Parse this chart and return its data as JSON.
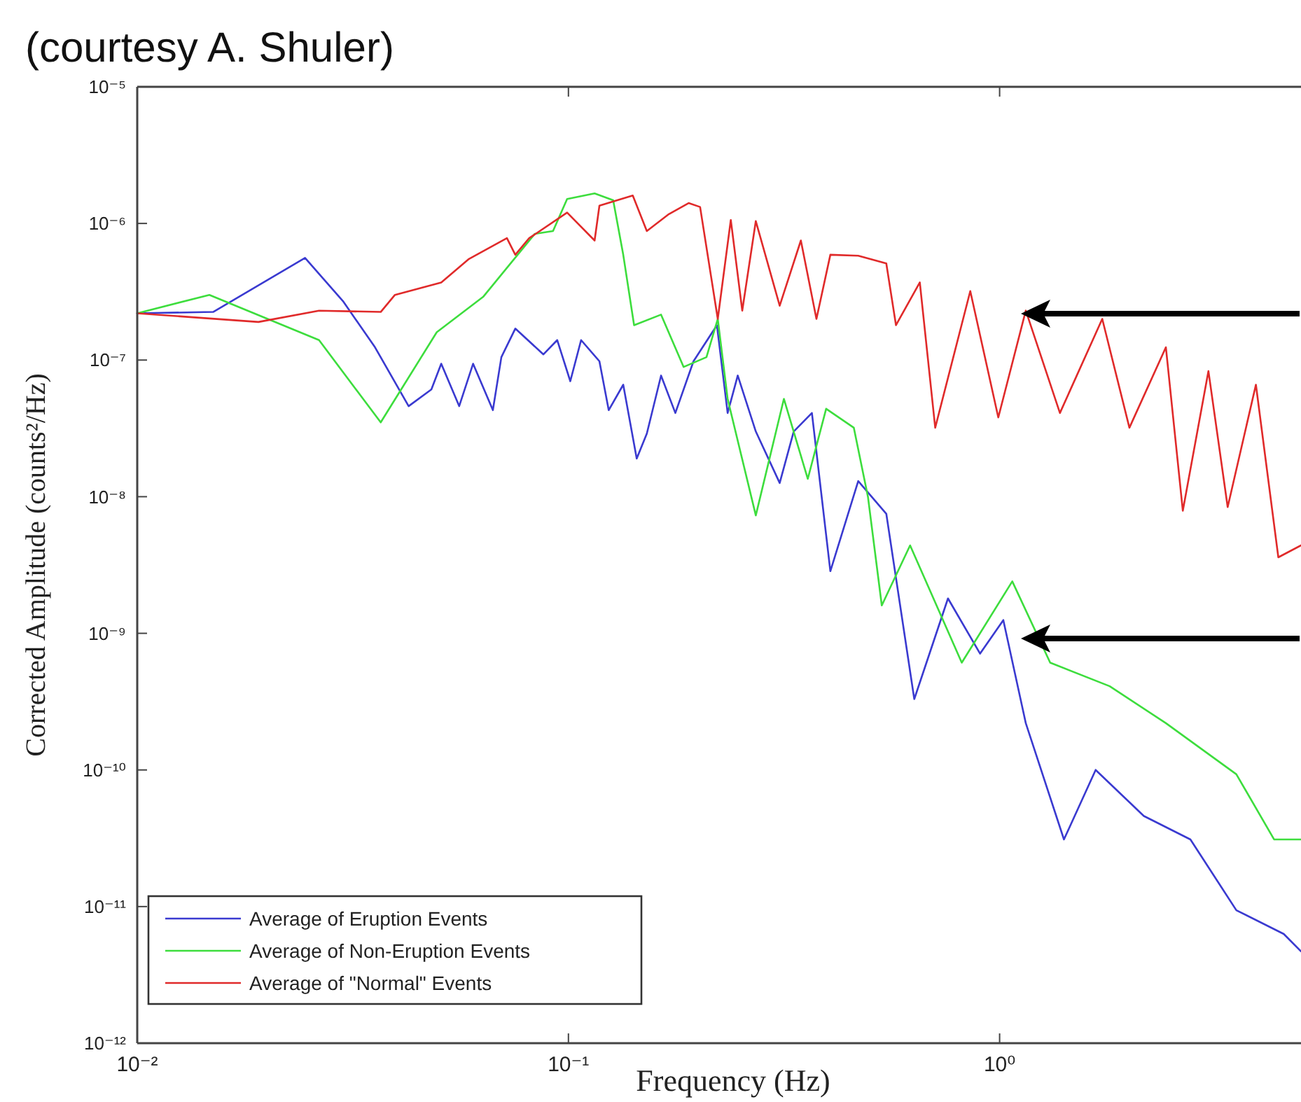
{
  "chart_data": {
    "type": "line",
    "annotations": [
      "(courtesy A. Shuler)"
    ],
    "xlabel": "Frequency (Hz)",
    "ylabel": "Corrected Amplitude (counts²/Hz)",
    "log": "xy",
    "grid": false,
    "legend": "bottom left",
    "xlim": [
      0.01,
      5
    ],
    "xticks": [
      {
        "value": 0.01,
        "label": "10⁻²"
      },
      {
        "value": 0.1,
        "label": "10⁻¹"
      },
      {
        "value": 1,
        "label": "10⁰"
      }
    ],
    "ylim": [
      1e-12,
      1e-05
    ],
    "yticks": [
      {
        "value": 1e-12,
        "label": "10⁻¹²"
      },
      {
        "value": 1e-11,
        "label": "10⁻¹¹"
      },
      {
        "value": 1e-10,
        "label": "10⁻¹⁰"
      },
      {
        "value": 1e-09,
        "label": "10⁻⁹"
      },
      {
        "value": 1e-08,
        "label": "10⁻⁸"
      },
      {
        "value": 1e-07,
        "label": "10⁻⁷"
      },
      {
        "value": 1e-06,
        "label": "10⁻⁶"
      },
      {
        "value": 1e-05,
        "label": "10⁻⁵"
      }
    ],
    "series": [
      {
        "name": "Average of Eruption Events",
        "color": "#3a3ad0",
        "x": [
          0.01,
          0.015,
          0.0245,
          0.03,
          0.0356,
          0.0426,
          0.0481,
          0.0507,
          0.0558,
          0.0601,
          0.0668,
          0.0699,
          0.0753,
          0.0875,
          0.0942,
          0.101,
          0.107,
          0.118,
          0.124,
          0.134,
          0.144,
          0.152,
          0.164,
          0.177,
          0.195,
          0.221,
          0.234,
          0.247,
          0.272,
          0.309,
          0.333,
          0.367,
          0.405,
          0.47,
          0.546,
          0.634,
          0.759,
          0.901,
          1.02,
          1.15,
          1.41,
          1.67,
          2.16,
          2.77,
          3.54,
          4.56,
          5
        ],
        "values": [
          2.2e-07,
          2.25e-07,
          5.6e-07,
          2.7e-07,
          1.24e-07,
          4.6e-08,
          6.1e-08,
          9.4e-08,
          4.6e-08,
          9.4e-08,
          4.3e-08,
          1.05e-07,
          1.7e-07,
          1.1e-07,
          1.4e-07,
          7e-08,
          1.4e-07,
          9.8e-08,
          4.3e-08,
          6.6e-08,
          1.9e-08,
          2.9e-08,
          7.7e-08,
          4.1e-08,
          9.8e-08,
          1.8e-07,
          4.1e-08,
          7.7e-08,
          3e-08,
          1.26e-08,
          3e-08,
          4.1e-08,
          2.85e-09,
          1.3e-08,
          7.5e-09,
          3.3e-10,
          1.8e-09,
          7.1e-10,
          1.25e-09,
          2.2e-10,
          3.1e-11,
          1e-10,
          4.6e-11,
          3.1e-11,
          9.4e-12,
          6.3e-12,
          4.7e-12
        ]
      },
      {
        "name": "Average of Non-Eruption Events",
        "color": "#3ddd3d",
        "x": [
          0.01,
          0.0147,
          0.0264,
          0.0367,
          0.0495,
          0.0634,
          0.0836,
          0.0921,
          0.0993,
          0.115,
          0.127,
          0.134,
          0.142,
          0.164,
          0.185,
          0.209,
          0.222,
          0.234,
          0.272,
          0.316,
          0.359,
          0.396,
          0.459,
          0.495,
          0.533,
          0.62,
          0.817,
          1.07,
          1.31,
          1.8,
          2.43,
          3.54,
          4.33,
          5
        ],
        "values": [
          2.2e-07,
          3e-07,
          1.4e-07,
          3.5e-08,
          1.6e-07,
          2.9e-07,
          8.4e-07,
          8.8e-07,
          1.51e-06,
          1.66e-06,
          1.48e-06,
          5.9e-07,
          1.8e-07,
          2.15e-07,
          8.9e-08,
          1.05e-07,
          2e-07,
          5.2e-08,
          7.3e-09,
          5.2e-08,
          1.35e-08,
          4.4e-08,
          3.2e-08,
          1e-08,
          1.6e-09,
          4.4e-09,
          6.1e-10,
          2.4e-09,
          6.1e-10,
          4.1e-10,
          2.2e-10,
          9.3e-11,
          3.1e-11,
          3.1e-11
        ]
      },
      {
        "name": "Average of \"Normal\" Events",
        "color": "#e02a2a",
        "x": [
          0.01,
          0.0191,
          0.0264,
          0.0367,
          0.0396,
          0.0507,
          0.0588,
          0.072,
          0.0753,
          0.0811,
          0.0993,
          0.115,
          0.118,
          0.141,
          0.152,
          0.171,
          0.19,
          0.202,
          0.222,
          0.238,
          0.253,
          0.272,
          0.309,
          0.346,
          0.376,
          0.405,
          0.47,
          0.546,
          0.575,
          0.653,
          0.709,
          0.855,
          0.993,
          1.15,
          1.38,
          1.73,
          2,
          2.43,
          2.66,
          3.05,
          3.38,
          3.93,
          4.43,
          5
        ],
        "values": [
          2.2e-07,
          1.9e-07,
          2.3e-07,
          2.25e-07,
          3e-07,
          3.7e-07,
          5.5e-07,
          7.8e-07,
          5.9e-07,
          7.8e-07,
          1.2e-06,
          7.5e-07,
          1.35e-06,
          1.6e-06,
          8.8e-07,
          1.17e-06,
          1.41e-06,
          1.32e-06,
          2e-07,
          1.06e-06,
          2.3e-07,
          1.04e-06,
          2.5e-07,
          7.5e-07,
          2e-07,
          5.9e-07,
          5.8e-07,
          5.1e-07,
          1.8e-07,
          3.7e-07,
          3.2e-08,
          3.2e-07,
          3.8e-08,
          2.3e-07,
          4.1e-08,
          2e-07,
          3.2e-08,
          1.24e-07,
          7.9e-09,
          8.3e-08,
          8.4e-09,
          6.6e-08,
          3.6e-09,
          4.4e-09
        ]
      }
    ]
  }
}
